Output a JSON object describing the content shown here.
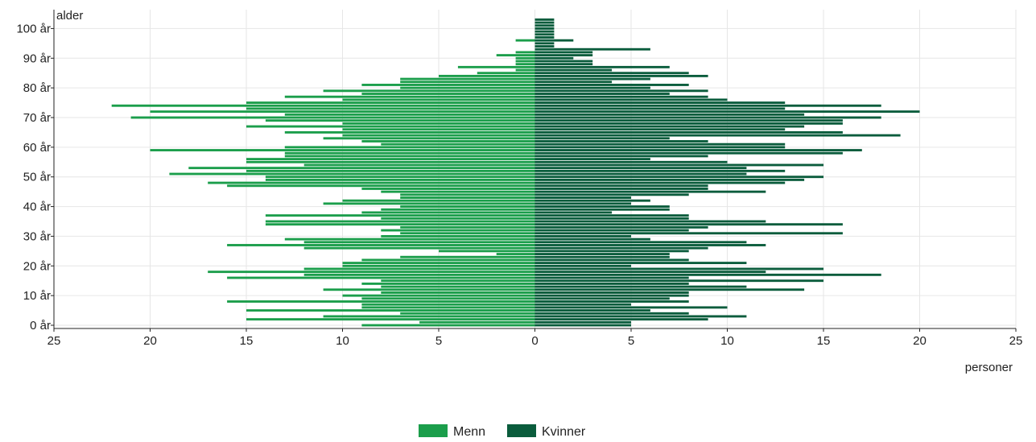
{
  "chart_data": {
    "type": "bar",
    "orientation": "horizontal",
    "subtype": "population-pyramid",
    "ylabel": "alder",
    "xlabel": "personer",
    "xlim": [
      -25,
      25
    ],
    "ylim": [
      0,
      105
    ],
    "x_ticks": [
      -25,
      -20,
      -15,
      -10,
      -5,
      0,
      5,
      10,
      15,
      20,
      25
    ],
    "x_tick_labels": [
      "25",
      "20",
      "15",
      "10",
      "5",
      "0",
      "5",
      "10",
      "15",
      "20",
      "25"
    ],
    "y_ticks": [
      0,
      10,
      20,
      30,
      40,
      50,
      60,
      70,
      80,
      90,
      100
    ],
    "y_tick_labels": [
      "0 år",
      "10 år",
      "20 år",
      "30 år",
      "40 år",
      "50 år",
      "60 år",
      "70 år",
      "80 år",
      "90 år",
      "100 år"
    ],
    "grid": true,
    "legend_position": "bottom-center",
    "ages": [
      0,
      1,
      2,
      3,
      4,
      5,
      6,
      7,
      8,
      9,
      10,
      11,
      12,
      13,
      14,
      15,
      16,
      17,
      18,
      19,
      20,
      21,
      22,
      23,
      24,
      25,
      26,
      27,
      28,
      29,
      30,
      31,
      32,
      33,
      34,
      35,
      36,
      37,
      38,
      39,
      40,
      41,
      42,
      43,
      44,
      45,
      46,
      47,
      48,
      49,
      50,
      51,
      52,
      53,
      54,
      55,
      56,
      57,
      58,
      59,
      60,
      61,
      62,
      63,
      64,
      65,
      66,
      67,
      68,
      69,
      70,
      71,
      72,
      73,
      74,
      75,
      76,
      77,
      78,
      79,
      80,
      81,
      82,
      83,
      84,
      85,
      86,
      87,
      88,
      89,
      90,
      91,
      92,
      93,
      94,
      95,
      96,
      97,
      98,
      99,
      100,
      101,
      102,
      103
    ],
    "series": [
      {
        "name": "Menn",
        "color": "#1b9e4b",
        "values": [
          9,
          6,
          15,
          11,
          7,
          15,
          9,
          9,
          16,
          9,
          10,
          8,
          11,
          8,
          9,
          8,
          16,
          12,
          17,
          12,
          10,
          10,
          9,
          7,
          2,
          5,
          12,
          16,
          12,
          13,
          8,
          7,
          8,
          7,
          14,
          14,
          8,
          14,
          9,
          8,
          7,
          11,
          10,
          7,
          7,
          8,
          9,
          16,
          17,
          14,
          14,
          19,
          15,
          18,
          12,
          15,
          15,
          13,
          13,
          20,
          13,
          8,
          9,
          11,
          10,
          13,
          10,
          15,
          10,
          14,
          21,
          13,
          20,
          15,
          22,
          15,
          10,
          13,
          9,
          11,
          7,
          9,
          7,
          7,
          5,
          3,
          1,
          4,
          1,
          1,
          1,
          2,
          1,
          0,
          0,
          0,
          1,
          0,
          0,
          0,
          0,
          0,
          0,
          0
        ]
      },
      {
        "name": "Kvinner",
        "color": "#0a5c3c",
        "values": [
          5,
          5,
          9,
          11,
          8,
          6,
          10,
          5,
          8,
          7,
          8,
          8,
          14,
          11,
          8,
          15,
          8,
          18,
          12,
          15,
          5,
          11,
          8,
          7,
          7,
          8,
          9,
          12,
          11,
          6,
          5,
          16,
          8,
          9,
          16,
          12,
          8,
          8,
          4,
          7,
          7,
          5,
          6,
          5,
          8,
          12,
          9,
          9,
          13,
          14,
          15,
          11,
          13,
          11,
          15,
          10,
          6,
          9,
          16,
          17,
          13,
          13,
          9,
          7,
          19,
          16,
          13,
          14,
          16,
          16,
          18,
          14,
          20,
          13,
          18,
          13,
          10,
          9,
          7,
          9,
          6,
          8,
          4,
          6,
          9,
          8,
          4,
          7,
          3,
          3,
          2,
          3,
          3,
          6,
          1,
          1,
          2,
          1,
          1,
          1,
          1,
          1,
          1,
          1
        ]
      }
    ]
  }
}
